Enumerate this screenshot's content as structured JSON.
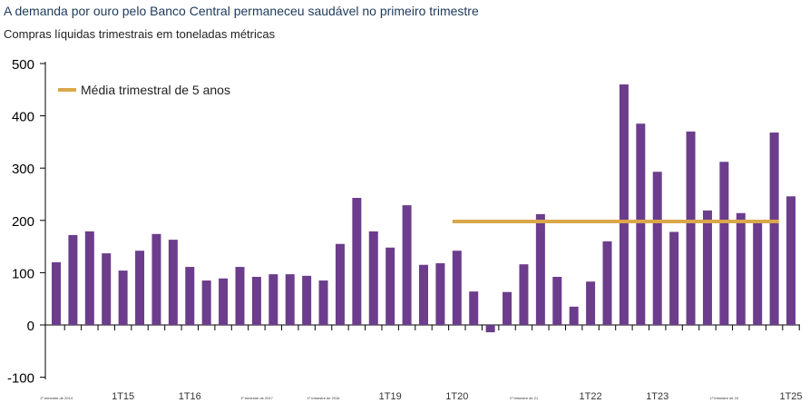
{
  "title": "A demanda por ouro pelo Banco Central permaneceu saudável no primeiro trimestre",
  "subtitle": "Compras líquidas trimestrais em toneladas métricas",
  "chart_data": {
    "type": "bar",
    "title": "A demanda por ouro pelo Banco Central permaneceu saudável no primeiro trimestre",
    "ylabel": "Compras líquidas trimestrais em toneladas métricas",
    "ylim": [
      -100,
      500
    ],
    "yticks": [
      -100,
      0,
      100,
      200,
      300,
      400,
      500
    ],
    "xtick_labels": [
      "1º trimestre de 2014",
      "1T15",
      "1T16",
      "1º trimestre de 2017",
      "1º trimestre de 2018",
      "1T19",
      "1T20",
      "1º trimestre de 21",
      "1T22",
      "1T23",
      "1º trimestre de 24",
      "1T25"
    ],
    "values": [
      120,
      172,
      179,
      137,
      104,
      142,
      174,
      163,
      111,
      85,
      89,
      111,
      92,
      97,
      97,
      94,
      85,
      155,
      243,
      179,
      148,
      229,
      115,
      118,
      142,
      64,
      -14,
      63,
      116,
      212,
      92,
      35,
      83,
      160,
      460,
      385,
      293,
      178,
      370,
      219,
      312,
      214,
      201,
      368,
      246
    ],
    "bar_color": "#6c3d8c",
    "reference_line": {
      "name": "Média trimestral de 5 anos",
      "value": 198,
      "start_index": 24,
      "end_index": 43,
      "color": "#d9a84a"
    },
    "legend_position": "top-left",
    "grid": false
  }
}
